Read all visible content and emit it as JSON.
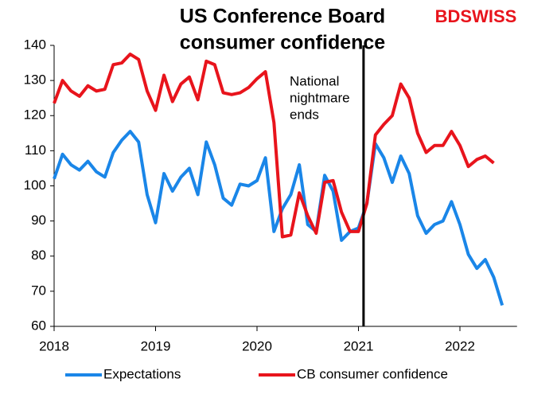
{
  "chart_data": {
    "type": "line",
    "title": [
      "US Conference Board",
      "consumer confidence"
    ],
    "logo": "BDSWISS",
    "annotation": {
      "lines": [
        "National",
        "nightmare",
        "ends"
      ],
      "x": 2021.05
    },
    "xlim": [
      2018,
      2022.5
    ],
    "xticks": [
      2018,
      2019,
      2020,
      2021,
      2022
    ],
    "ylim": [
      60,
      140
    ],
    "yticks": [
      60,
      70,
      80,
      90,
      100,
      110,
      120,
      130,
      140
    ],
    "grid": false,
    "legend": "bottom",
    "x": [
      2018,
      2018.083,
      2018.167,
      2018.25,
      2018.333,
      2018.417,
      2018.5,
      2018.583,
      2018.667,
      2018.75,
      2018.833,
      2018.917,
      2019,
      2019.083,
      2019.167,
      2019.25,
      2019.333,
      2019.417,
      2019.5,
      2019.583,
      2019.667,
      2019.75,
      2019.833,
      2019.917,
      2020,
      2020.083,
      2020.167,
      2020.25,
      2020.333,
      2020.417,
      2020.5,
      2020.583,
      2020.667,
      2020.75,
      2020.833,
      2020.917,
      2021,
      2021.083,
      2021.167,
      2021.25,
      2021.333,
      2021.417,
      2021.5,
      2021.583,
      2021.667,
      2021.75,
      2021.833,
      2021.917,
      2022,
      2022.083,
      2022.167,
      2022.25,
      2022.333,
      2022.417
    ],
    "series": [
      {
        "name": "Expectations",
        "color": "#1a86e8",
        "values": [
          102,
          109,
          106,
          104.5,
          107,
          104,
          102.5,
          109.5,
          113,
          115.5,
          112.5,
          97.5,
          89.5,
          103.5,
          98.5,
          102.5,
          105,
          97.5,
          112.5,
          106,
          96.5,
          94.5,
          100.5,
          100,
          101.5,
          108,
          87,
          93.5,
          97.5,
          106,
          89,
          87,
          103,
          98.5,
          84.5,
          87,
          88,
          95,
          112,
          108,
          101,
          108.5,
          103.5,
          91.5,
          86.5,
          89,
          90,
          95.5,
          89,
          80.5,
          76.5,
          79,
          74,
          66
        ]
      },
      {
        "name": "CB consumer confidence",
        "color": "#e8141c",
        "values": [
          123.5,
          130,
          127,
          125.5,
          128.5,
          127,
          127.5,
          134.5,
          135,
          137.5,
          136,
          127,
          121.5,
          131.5,
          124,
          129,
          131,
          124.5,
          135.5,
          134.5,
          126.5,
          126,
          126.5,
          128,
          130.5,
          132.5,
          118,
          85.5,
          86,
          98,
          91.5,
          86.5,
          101,
          101.5,
          92.5,
          87,
          87,
          95,
          114.5,
          117.5,
          120,
          129,
          125,
          115,
          109.5,
          111.5,
          111.5,
          115.5,
          111.5,
          105.5,
          107.5,
          108.5,
          106.5,
          null
        ]
      }
    ]
  }
}
